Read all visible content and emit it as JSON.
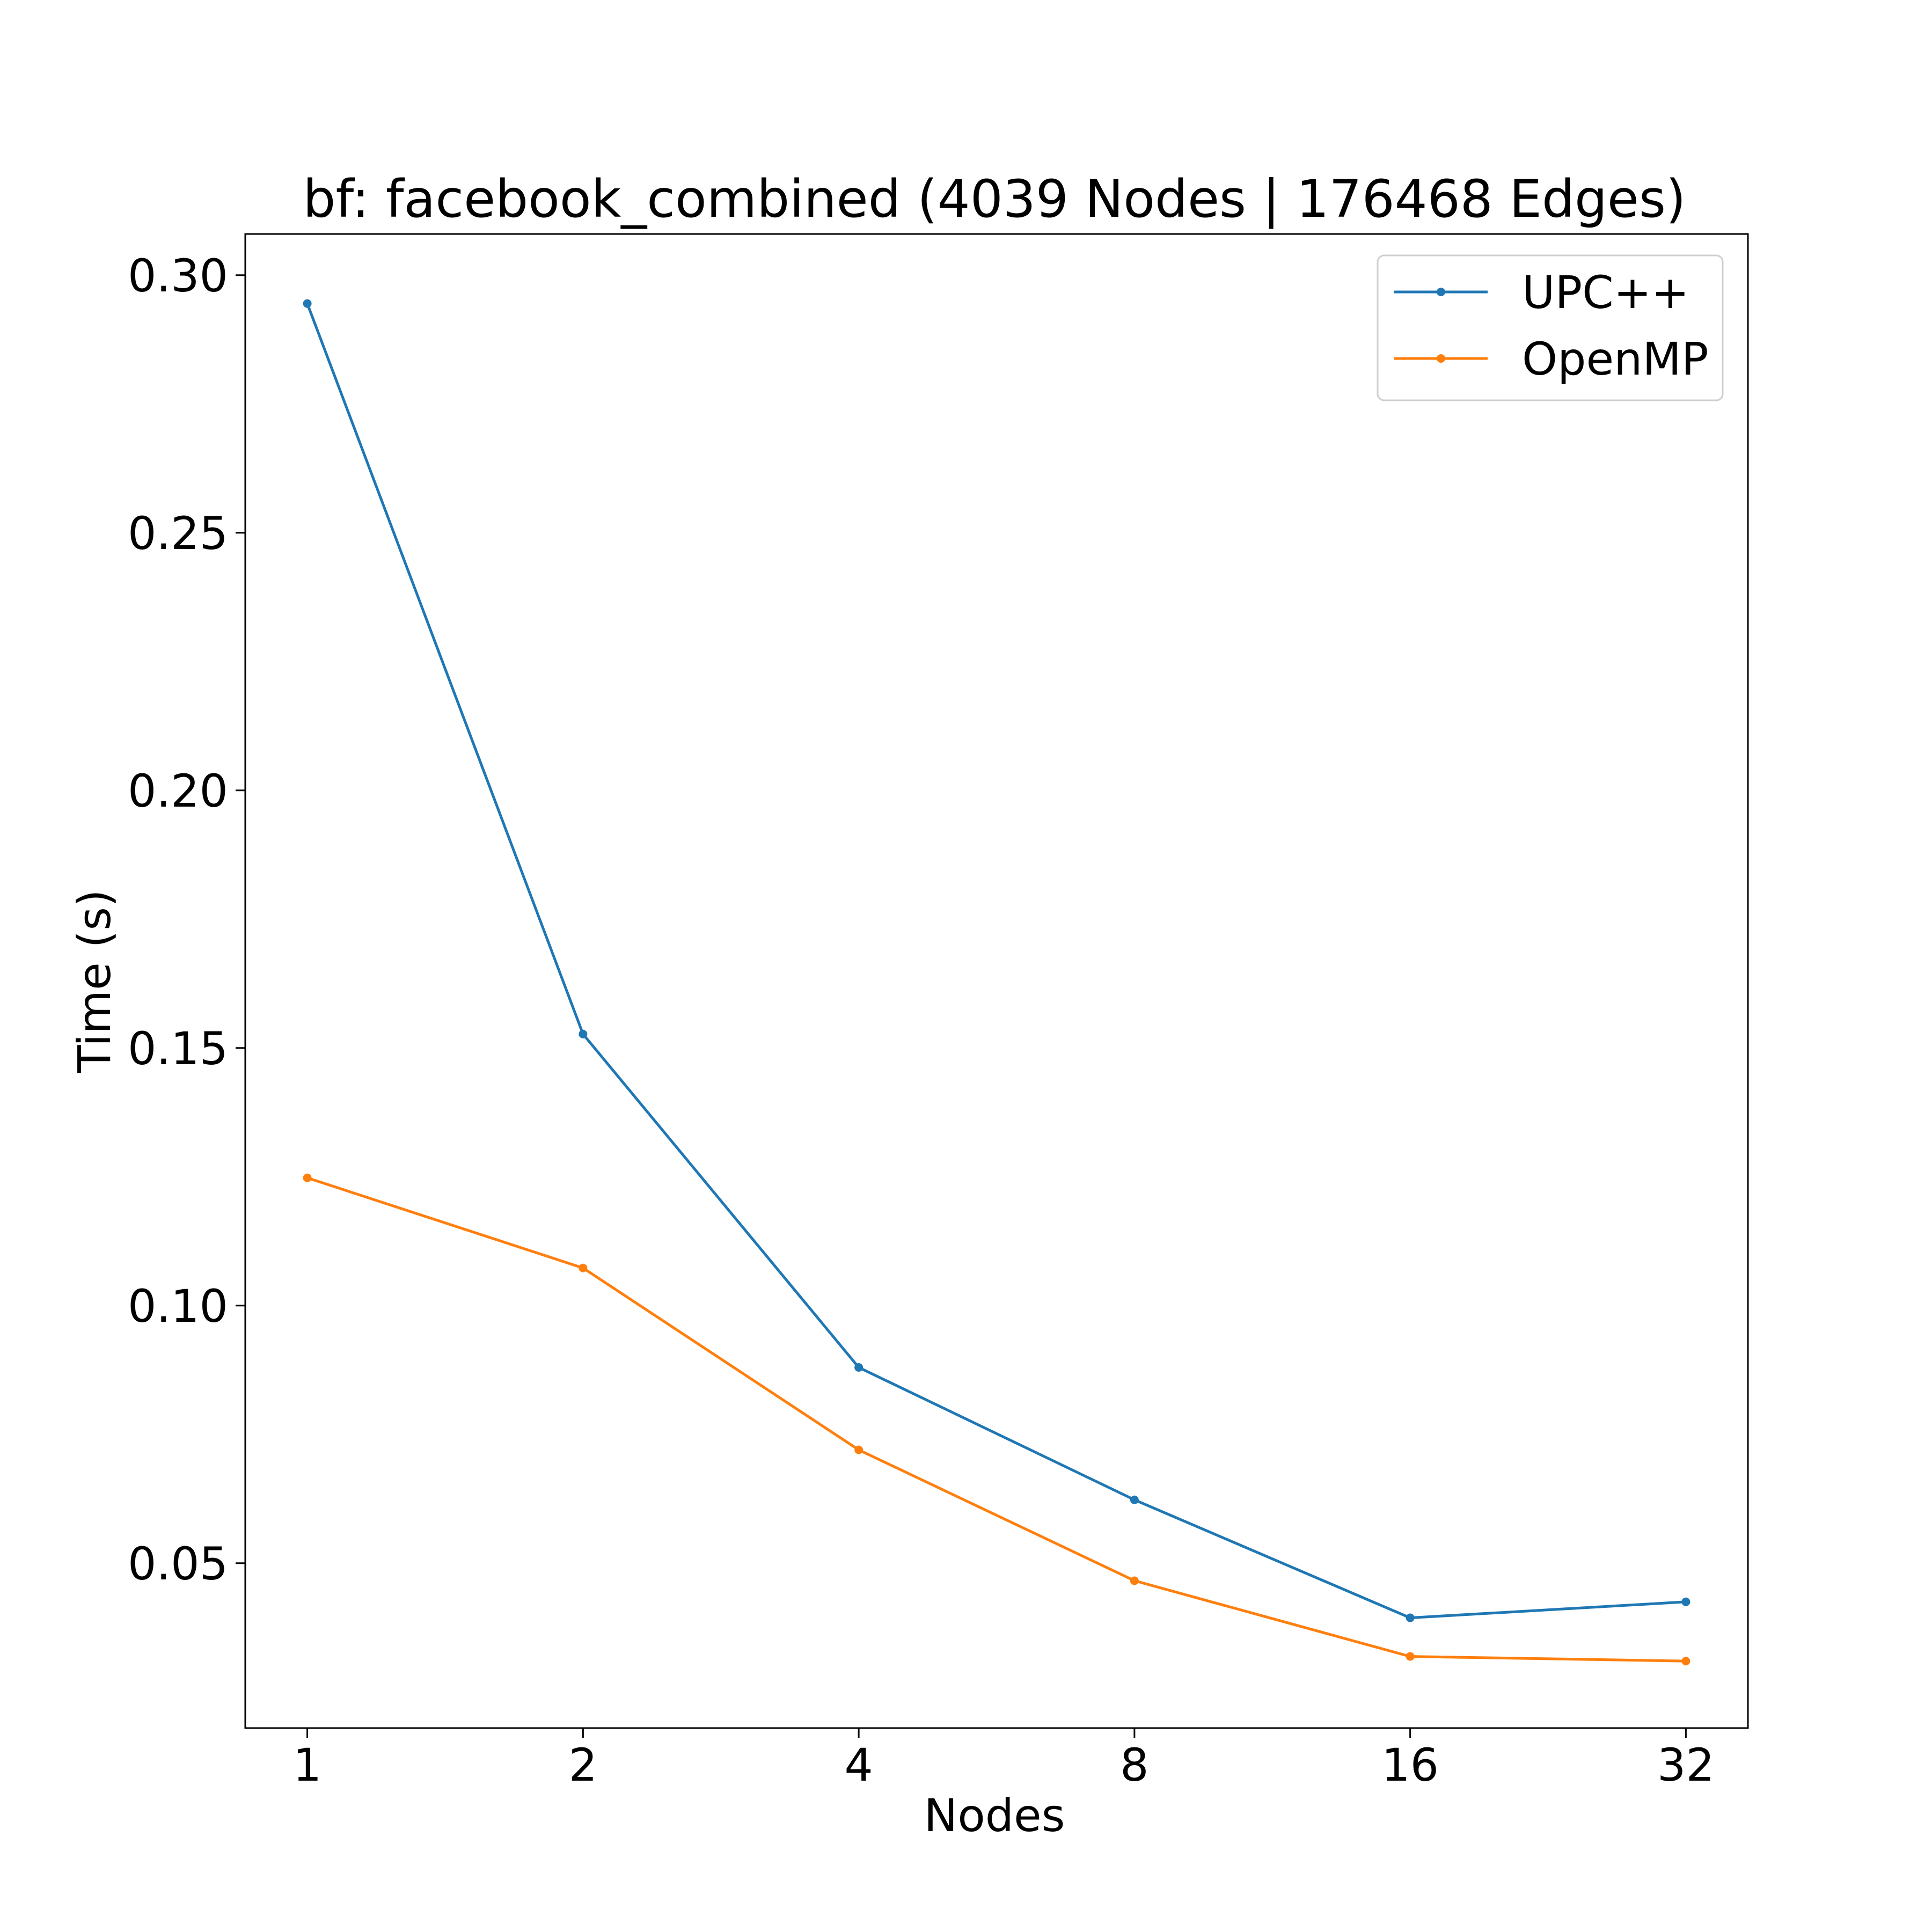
{
  "chart_data": {
    "type": "line",
    "title": "bf: facebook_combined (4039 Nodes | 176468 Edges)",
    "xlabel": "Nodes",
    "ylabel": "Time (s)",
    "x_scale": "log2",
    "categories": [
      "1",
      "2",
      "4",
      "8",
      "16",
      "32"
    ],
    "x": [
      1,
      2,
      4,
      8,
      16,
      32
    ],
    "ylim": [
      0.018,
      0.308
    ],
    "yticks": [
      0.05,
      0.1,
      0.15,
      0.2,
      0.25,
      0.3
    ],
    "ytick_labels": [
      "0.05",
      "0.10",
      "0.15",
      "0.20",
      "0.25",
      "0.30"
    ],
    "grid": false,
    "legend_position": "upper right",
    "series": [
      {
        "name": "UPC++",
        "color": "#1f77b4",
        "values": [
          0.2945,
          0.1527,
          0.088,
          0.0623,
          0.0394,
          0.0425
        ]
      },
      {
        "name": "OpenMP",
        "color": "#ff7f0e",
        "values": [
          0.1248,
          0.1073,
          0.072,
          0.0466,
          0.0319,
          0.031
        ]
      }
    ]
  }
}
